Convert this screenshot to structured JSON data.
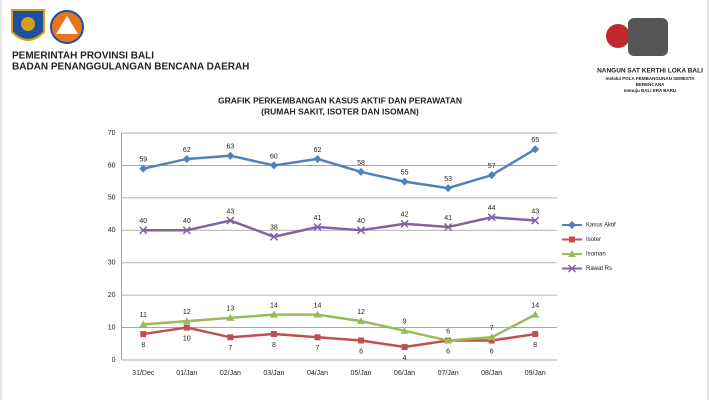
{
  "header": {
    "lines": [
      "PEMERINTAH PROVINSI BALI",
      "BADAN PENANGGULANGAN BENCANA DAERAH"
    ],
    "motto": [
      "NANGUN SAT KERTHI LOKA BALI",
      "melalui POLA PEMBANGUNAN SEMESTA",
      "BERENCANA",
      "menuju BALI ERA BARU"
    ]
  },
  "chart_data": {
    "type": "line",
    "title": "GRAFIK PERKEMBANGAN KASUS AKTIF DAN PERAWATAN",
    "subtitle": "(RUMAH SAKIT, ISOTER DAN ISOMAN)",
    "categories": [
      "31/Dec",
      "01/Jan",
      "02/Jan",
      "03/Jan",
      "04/Jan",
      "05/Jan",
      "06/Jan",
      "07/Jan",
      "08/Jan",
      "09/Jan"
    ],
    "series": [
      {
        "name": "Kasus Aktif",
        "color": "#4f81bd",
        "values": [
          59,
          62,
          63,
          60,
          62,
          58,
          55,
          53,
          57,
          65
        ]
      },
      {
        "name": "Isoter",
        "color": "#c0504d",
        "values": [
          8,
          10,
          7,
          8,
          7,
          6,
          4,
          6,
          6,
          8
        ]
      },
      {
        "name": "Isoman",
        "color": "#9bbb59",
        "values": [
          11,
          12,
          13,
          14,
          14,
          12,
          9,
          6,
          7,
          14
        ]
      },
      {
        "name": "Rawat Rs",
        "color": "#8064a2",
        "values": [
          40,
          40,
          43,
          38,
          41,
          40,
          42,
          41,
          44,
          43
        ]
      }
    ],
    "ylim": [
      0,
      70
    ],
    "yticks": [
      0,
      10,
      20,
      30,
      40,
      50,
      60,
      70
    ],
    "grid": true,
    "legend": "right"
  }
}
